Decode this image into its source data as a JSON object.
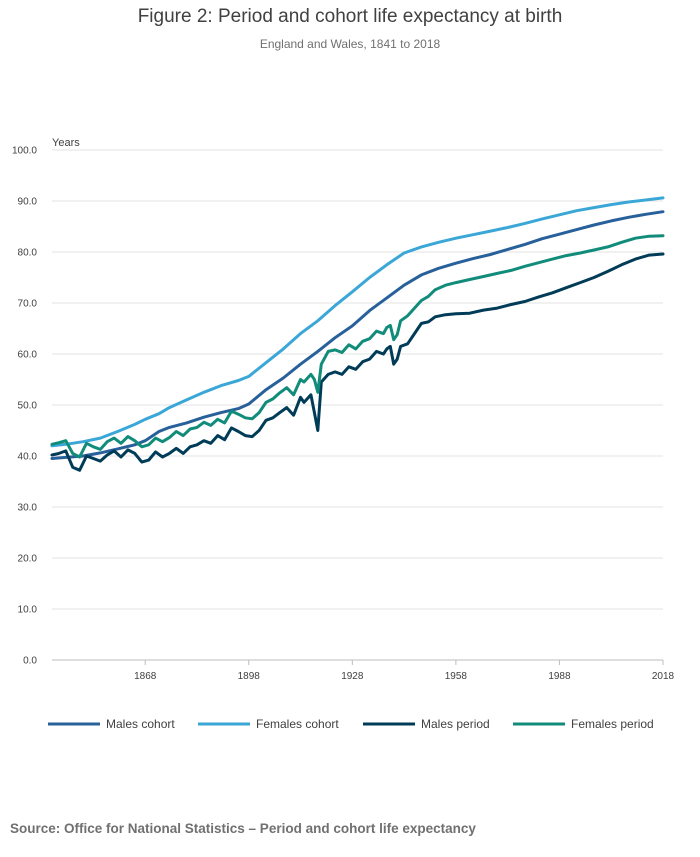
{
  "title": "Figure 2: Period and cohort life expectancy at birth",
  "subtitle": "England and Wales, 1841 to 2018",
  "source": "Source: Office for National Statistics – Period and cohort life expectancy",
  "chart_data": {
    "type": "line",
    "ylabel": "Years",
    "xlabel": "",
    "xlim": [
      1841,
      2018
    ],
    "ylim": [
      0,
      100
    ],
    "x_ticks": [
      1868,
      1898,
      1928,
      1958,
      1988,
      2018
    ],
    "y_ticks": [
      "0.0",
      "10.0",
      "20.0",
      "30.0",
      "40.0",
      "50.0",
      "60.0",
      "70.0",
      "80.0",
      "90.0",
      "100.0"
    ],
    "grid": "horizontal",
    "legend_position": "bottom",
    "series": [
      {
        "name": "Males cohort",
        "color": "#27609a",
        "points": [
          [
            1841,
            39.5
          ],
          [
            1850,
            40.0
          ],
          [
            1855,
            40.6
          ],
          [
            1860,
            41.4
          ],
          [
            1865,
            42.2
          ],
          [
            1868,
            43.0
          ],
          [
            1872,
            44.8
          ],
          [
            1875,
            45.6
          ],
          [
            1880,
            46.5
          ],
          [
            1885,
            47.6
          ],
          [
            1890,
            48.5
          ],
          [
            1895,
            49.3
          ],
          [
            1898,
            50.2
          ],
          [
            1903,
            53.0
          ],
          [
            1908,
            55.3
          ],
          [
            1913,
            58.0
          ],
          [
            1918,
            60.5
          ],
          [
            1923,
            63.2
          ],
          [
            1928,
            65.5
          ],
          [
            1933,
            68.5
          ],
          [
            1938,
            71.0
          ],
          [
            1943,
            73.5
          ],
          [
            1948,
            75.5
          ],
          [
            1953,
            76.8
          ],
          [
            1958,
            77.8
          ],
          [
            1963,
            78.7
          ],
          [
            1968,
            79.5
          ],
          [
            1973,
            80.5
          ],
          [
            1978,
            81.5
          ],
          [
            1983,
            82.6
          ],
          [
            1988,
            83.5
          ],
          [
            1993,
            84.4
          ],
          [
            1998,
            85.3
          ],
          [
            2003,
            86.1
          ],
          [
            2008,
            86.8
          ],
          [
            2013,
            87.4
          ],
          [
            2018,
            87.9
          ]
        ]
      },
      {
        "name": "Females cohort",
        "color": "#3aa7d7",
        "points": [
          [
            1841,
            42.0
          ],
          [
            1845,
            42.3
          ],
          [
            1850,
            42.8
          ],
          [
            1855,
            43.5
          ],
          [
            1860,
            44.8
          ],
          [
            1865,
            46.2
          ],
          [
            1868,
            47.2
          ],
          [
            1872,
            48.3
          ],
          [
            1875,
            49.5
          ],
          [
            1880,
            51.0
          ],
          [
            1885,
            52.5
          ],
          [
            1890,
            53.8
          ],
          [
            1895,
            54.8
          ],
          [
            1898,
            55.6
          ],
          [
            1903,
            58.3
          ],
          [
            1908,
            61.0
          ],
          [
            1913,
            64.0
          ],
          [
            1918,
            66.5
          ],
          [
            1923,
            69.5
          ],
          [
            1928,
            72.2
          ],
          [
            1933,
            75.0
          ],
          [
            1938,
            77.5
          ],
          [
            1943,
            79.8
          ],
          [
            1948,
            81.0
          ],
          [
            1953,
            81.9
          ],
          [
            1958,
            82.7
          ],
          [
            1963,
            83.4
          ],
          [
            1968,
            84.1
          ],
          [
            1973,
            84.8
          ],
          [
            1978,
            85.6
          ],
          [
            1983,
            86.5
          ],
          [
            1988,
            87.3
          ],
          [
            1993,
            88.1
          ],
          [
            1998,
            88.7
          ],
          [
            2003,
            89.3
          ],
          [
            2008,
            89.8
          ],
          [
            2013,
            90.2
          ],
          [
            2018,
            90.6
          ]
        ]
      },
      {
        "name": "Males period",
        "color": "#003c57",
        "points": [
          [
            1841,
            40.2
          ],
          [
            1843,
            40.5
          ],
          [
            1845,
            41.0
          ],
          [
            1847,
            37.8
          ],
          [
            1849,
            37.2
          ],
          [
            1851,
            40.0
          ],
          [
            1853,
            39.5
          ],
          [
            1855,
            39.0
          ],
          [
            1857,
            40.2
          ],
          [
            1859,
            41.0
          ],
          [
            1861,
            39.8
          ],
          [
            1863,
            41.2
          ],
          [
            1865,
            40.5
          ],
          [
            1867,
            38.8
          ],
          [
            1869,
            39.2
          ],
          [
            1871,
            40.8
          ],
          [
            1873,
            39.8
          ],
          [
            1875,
            40.5
          ],
          [
            1877,
            41.5
          ],
          [
            1879,
            40.5
          ],
          [
            1881,
            41.8
          ],
          [
            1883,
            42.2
          ],
          [
            1885,
            43.0
          ],
          [
            1887,
            42.5
          ],
          [
            1889,
            44.0
          ],
          [
            1891,
            43.2
          ],
          [
            1893,
            45.5
          ],
          [
            1895,
            44.8
          ],
          [
            1897,
            44.0
          ],
          [
            1899,
            43.8
          ],
          [
            1901,
            45.0
          ],
          [
            1903,
            47.0
          ],
          [
            1905,
            47.5
          ],
          [
            1907,
            48.5
          ],
          [
            1909,
            49.5
          ],
          [
            1911,
            48.0
          ],
          [
            1913,
            51.5
          ],
          [
            1914,
            50.5
          ],
          [
            1916,
            52.0
          ],
          [
            1917,
            48.5
          ],
          [
            1918,
            45.0
          ],
          [
            1919,
            54.5
          ],
          [
            1921,
            56.0
          ],
          [
            1923,
            56.5
          ],
          [
            1925,
            56.0
          ],
          [
            1927,
            57.5
          ],
          [
            1929,
            57.0
          ],
          [
            1931,
            58.5
          ],
          [
            1933,
            59.0
          ],
          [
            1935,
            60.5
          ],
          [
            1937,
            60.0
          ],
          [
            1938,
            61.0
          ],
          [
            1939,
            61.5
          ],
          [
            1940,
            58.0
          ],
          [
            1941,
            59.0
          ],
          [
            1942,
            61.5
          ],
          [
            1944,
            62.0
          ],
          [
            1946,
            64.0
          ],
          [
            1948,
            66.0
          ],
          [
            1950,
            66.3
          ],
          [
            1952,
            67.3
          ],
          [
            1955,
            67.7
          ],
          [
            1958,
            67.9
          ],
          [
            1962,
            68.0
          ],
          [
            1966,
            68.6
          ],
          [
            1970,
            69.0
          ],
          [
            1974,
            69.7
          ],
          [
            1978,
            70.3
          ],
          [
            1982,
            71.2
          ],
          [
            1986,
            72.0
          ],
          [
            1990,
            73.0
          ],
          [
            1994,
            74.0
          ],
          [
            1998,
            75.0
          ],
          [
            2002,
            76.2
          ],
          [
            2006,
            77.5
          ],
          [
            2010,
            78.6
          ],
          [
            2014,
            79.4
          ],
          [
            2018,
            79.6
          ]
        ]
      },
      {
        "name": "Females period",
        "color": "#118c7b",
        "points": [
          [
            1841,
            42.3
          ],
          [
            1843,
            42.6
          ],
          [
            1845,
            43.0
          ],
          [
            1847,
            40.5
          ],
          [
            1849,
            39.8
          ],
          [
            1851,
            42.5
          ],
          [
            1853,
            41.8
          ],
          [
            1855,
            41.3
          ],
          [
            1857,
            42.8
          ],
          [
            1859,
            43.5
          ],
          [
            1861,
            42.5
          ],
          [
            1863,
            43.8
          ],
          [
            1865,
            43.0
          ],
          [
            1867,
            41.8
          ],
          [
            1869,
            42.2
          ],
          [
            1871,
            43.5
          ],
          [
            1873,
            42.8
          ],
          [
            1875,
            43.6
          ],
          [
            1877,
            44.8
          ],
          [
            1879,
            44.0
          ],
          [
            1881,
            45.3
          ],
          [
            1883,
            45.6
          ],
          [
            1885,
            46.6
          ],
          [
            1887,
            46.0
          ],
          [
            1889,
            47.2
          ],
          [
            1891,
            46.5
          ],
          [
            1893,
            48.8
          ],
          [
            1895,
            48.2
          ],
          [
            1897,
            47.5
          ],
          [
            1899,
            47.3
          ],
          [
            1901,
            48.5
          ],
          [
            1903,
            50.5
          ],
          [
            1905,
            51.2
          ],
          [
            1907,
            52.4
          ],
          [
            1909,
            53.4
          ],
          [
            1911,
            52.0
          ],
          [
            1913,
            55.0
          ],
          [
            1914,
            54.5
          ],
          [
            1916,
            56.0
          ],
          [
            1917,
            55.0
          ],
          [
            1918,
            52.5
          ],
          [
            1919,
            58.0
          ],
          [
            1921,
            60.5
          ],
          [
            1923,
            60.8
          ],
          [
            1925,
            60.3
          ],
          [
            1927,
            61.8
          ],
          [
            1929,
            61.0
          ],
          [
            1931,
            62.5
          ],
          [
            1933,
            63.0
          ],
          [
            1935,
            64.5
          ],
          [
            1937,
            64.0
          ],
          [
            1938,
            65.2
          ],
          [
            1939,
            65.6
          ],
          [
            1940,
            62.8
          ],
          [
            1941,
            63.8
          ],
          [
            1942,
            66.5
          ],
          [
            1944,
            67.5
          ],
          [
            1946,
            69.0
          ],
          [
            1948,
            70.5
          ],
          [
            1950,
            71.3
          ],
          [
            1952,
            72.6
          ],
          [
            1955,
            73.5
          ],
          [
            1958,
            74.0
          ],
          [
            1962,
            74.6
          ],
          [
            1966,
            75.2
          ],
          [
            1970,
            75.8
          ],
          [
            1974,
            76.4
          ],
          [
            1978,
            77.2
          ],
          [
            1982,
            77.9
          ],
          [
            1986,
            78.6
          ],
          [
            1990,
            79.3
          ],
          [
            1994,
            79.8
          ],
          [
            1998,
            80.4
          ],
          [
            2002,
            81.0
          ],
          [
            2006,
            81.9
          ],
          [
            2010,
            82.7
          ],
          [
            2014,
            83.1
          ],
          [
            2018,
            83.2
          ]
        ]
      }
    ]
  }
}
